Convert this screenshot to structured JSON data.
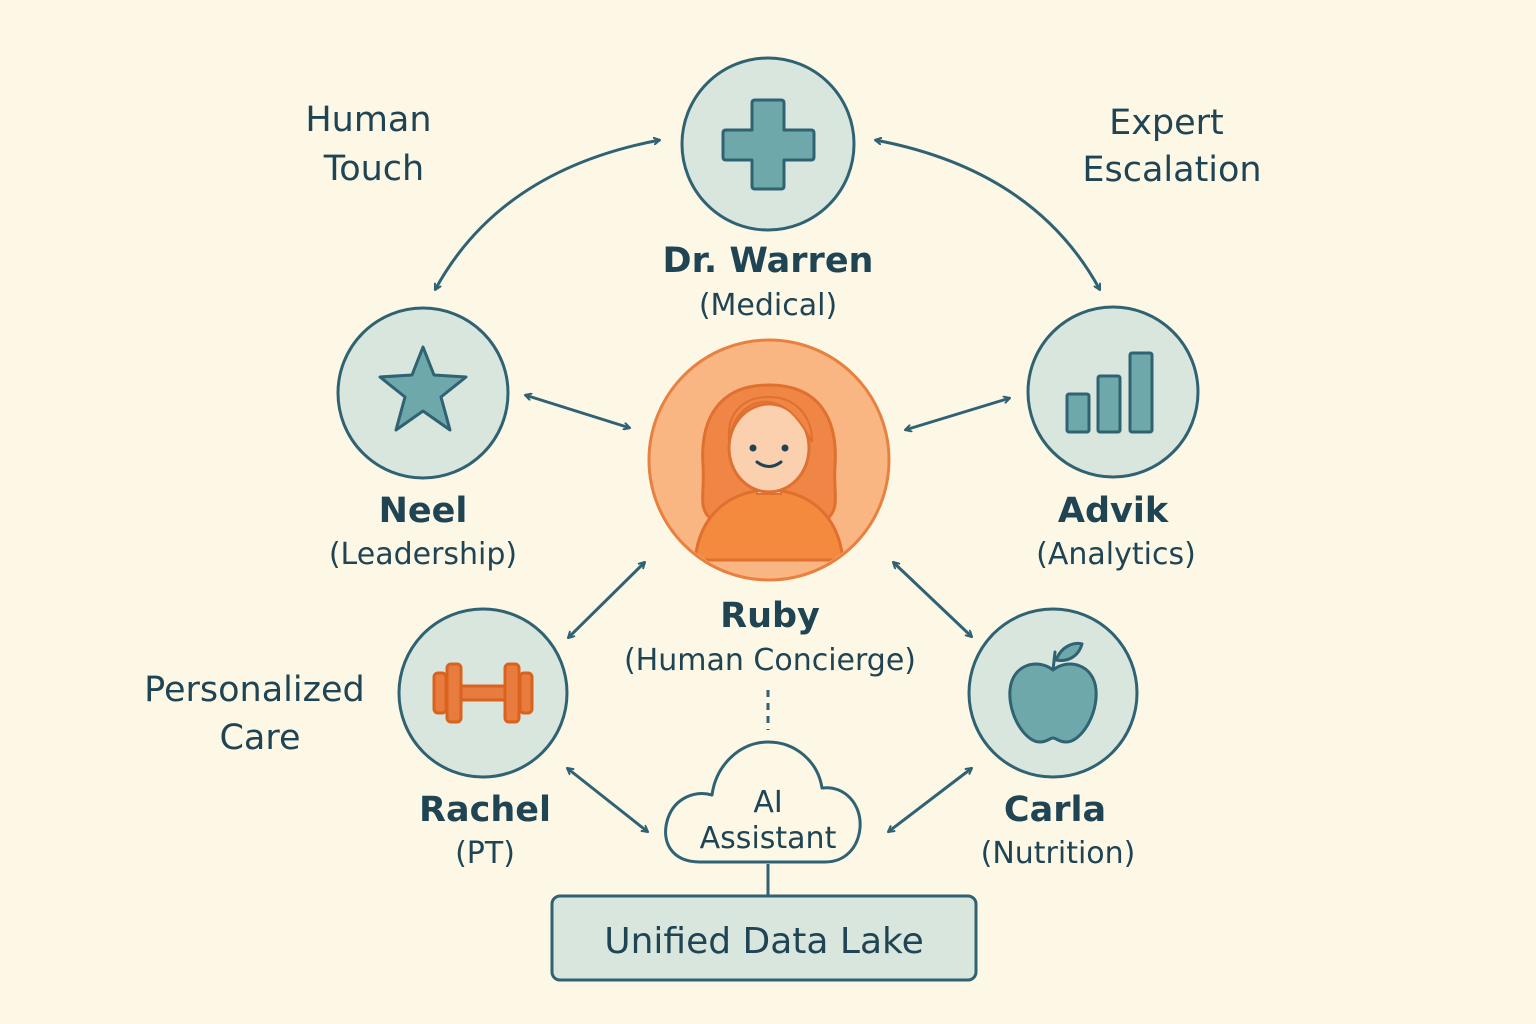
{
  "themes": {
    "human_touch": [
      "Human",
      "Touch"
    ],
    "expert_escalation": [
      "Expert",
      "Escalation"
    ],
    "personalized_care": [
      "Personalized",
      "Care"
    ]
  },
  "nodes": {
    "warren": {
      "name": "Dr. Warren",
      "role": "(Medical)",
      "icon": "medical-cross-icon"
    },
    "neel": {
      "name": "Neel",
      "role": "(Leadership)",
      "icon": "star-icon"
    },
    "advik": {
      "name": "Advik",
      "role": "(Analytics)",
      "icon": "bar-chart-icon"
    },
    "ruby": {
      "name": "Ruby",
      "role": "(Human Concierge)",
      "icon": "woman-avatar-icon"
    },
    "rachel": {
      "name": "Rachel",
      "role": "(PT)",
      "icon": "dumbbell-icon"
    },
    "carla": {
      "name": "Carla",
      "role": "(Nutrition)",
      "icon": "apple-icon"
    }
  },
  "ai": {
    "lines": [
      "AI",
      "Assistant"
    ],
    "icon": "cloud-icon"
  },
  "data_lake": {
    "label": "Unified Data Lake"
  },
  "colors": {
    "background": "#fdf7e6",
    "node_fill": "#d9e6dd",
    "node_stroke": "#2f6272",
    "icon_teal": "#6fa8aa",
    "text_dark": "#1f4454",
    "ruby_fill": "#f9b582",
    "ruby_stroke": "#e8813f",
    "dumbbell_orange": "#e87b3e"
  }
}
